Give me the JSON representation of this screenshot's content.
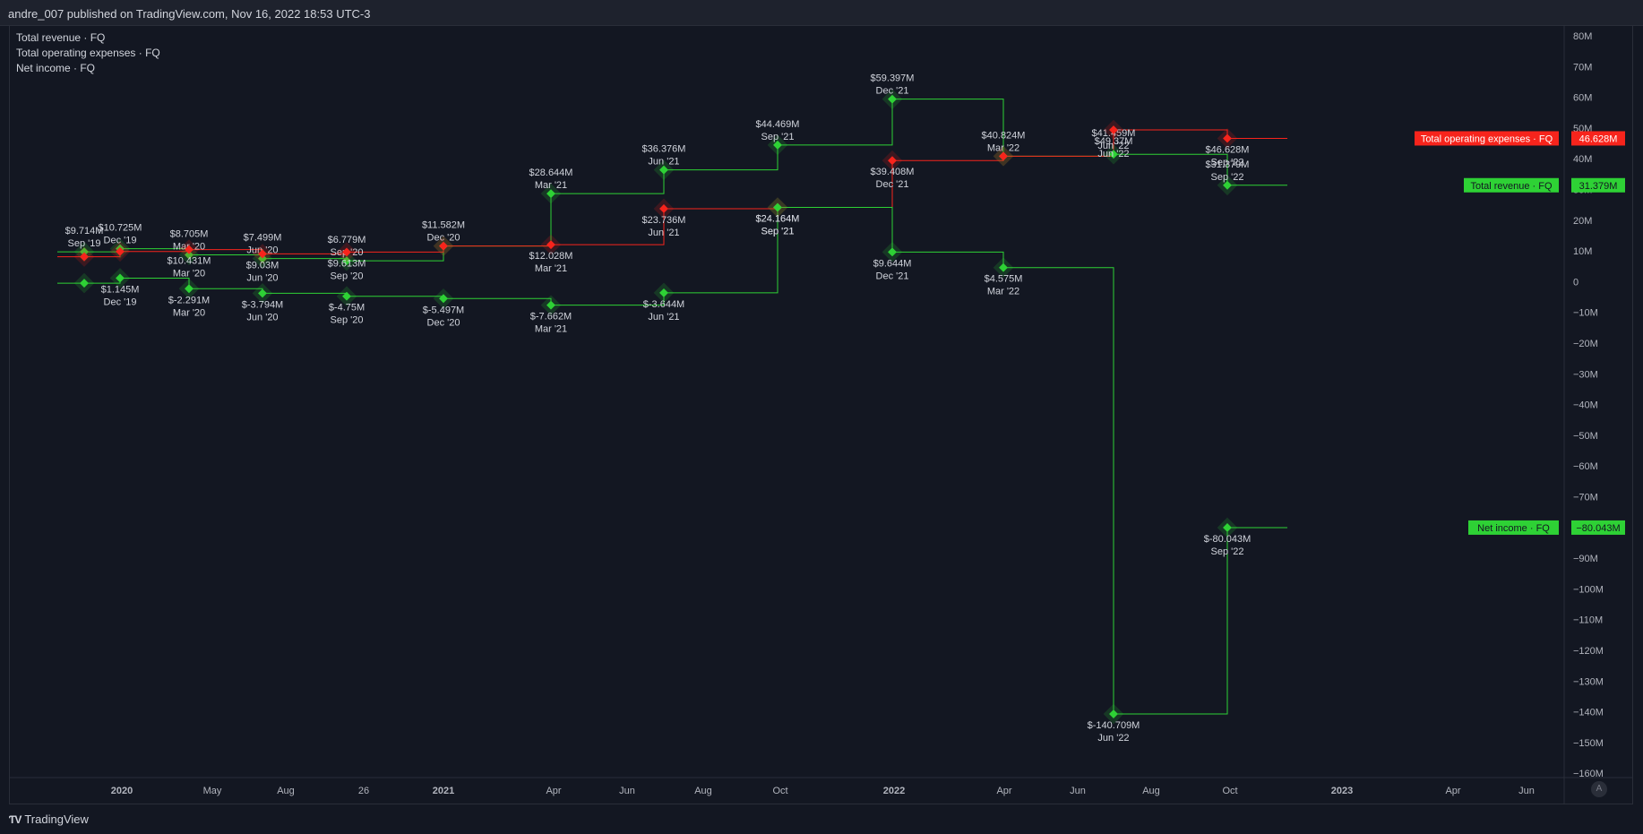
{
  "header": {
    "title": "andre_007 published on TradingView.com, Nov 16, 2022 18:53 UTC-3"
  },
  "legend": {
    "items": [
      "Total revenue · FQ",
      "Total operating expenses · FQ",
      "Net income · FQ"
    ]
  },
  "brand": {
    "label": "TradingView"
  },
  "auto_button": "A",
  "colors": {
    "background": "#131722",
    "revenue": "#2ed135",
    "opex": "#f7241c",
    "net_income": "#2ed135",
    "axis_text": "#b2b5be"
  },
  "chart_data": {
    "type": "line",
    "title": "",
    "x_axis": {
      "ticks": [
        "2020",
        "May",
        "Aug",
        "26",
        "2021",
        "Apr",
        "Jun",
        "Aug",
        "Oct",
        "2022",
        "Apr",
        "Jun",
        "Aug",
        "Oct",
        "2023",
        "Apr",
        "Jun"
      ]
    },
    "y_axis": {
      "unit": "M",
      "range": [
        -160,
        80
      ],
      "ticks": [
        "80M",
        "70M",
        "60M",
        "50M",
        "40M",
        "30M",
        "20M",
        "10M",
        "0",
        "−10M",
        "−20M",
        "−30M",
        "−40M",
        "−50M",
        "−60M",
        "−70M",
        "−80M",
        "−90M",
        "−100M",
        "−110M",
        "−120M",
        "−130M",
        "−140M",
        "−150M",
        "−160M"
      ]
    },
    "categories": [
      "Sep '19",
      "Dec '19",
      "Mar '20",
      "Jun '20",
      "Sep '20",
      "Dec '20",
      "Mar '21",
      "Jun '21",
      "Sep '21",
      "Dec '21",
      "Mar '22",
      "Jun '22",
      "Sep '22"
    ],
    "series": [
      {
        "name": "Total revenue · FQ",
        "values": [
          9.714,
          10.725,
          8.705,
          7.499,
          6.779,
          11.582,
          28.644,
          36.376,
          44.469,
          59.397,
          40.824,
          41.459,
          31.379
        ],
        "labels": [
          "$9.714M",
          "$10.725M",
          "$8.705M",
          "$7.499M",
          "$6.779M",
          "$11.582M",
          "$28.644M",
          "$36.376M",
          "$44.469M",
          "$59.397M",
          "$40.824M",
          "$41.459M",
          "$31.379M"
        ],
        "last_label": "31.379M"
      },
      {
        "name": "Total operating expenses · FQ",
        "values": [
          8.1,
          9.8,
          10.431,
          9.03,
          9.613,
          11.582,
          12.028,
          23.736,
          24.164,
          39.408,
          40.824,
          49.37,
          46.628
        ],
        "labels": [
          "",
          "",
          "$10.431M",
          "$9.03M",
          "$9.613M",
          "",
          "$12.028M",
          "$23.736M",
          "$24.164M",
          "$39.408M",
          "",
          "$49.37M",
          "$46.628M"
        ],
        "last_label": "46.628M"
      },
      {
        "name": "Net income · FQ",
        "values": [
          -0.5,
          1.145,
          -2.291,
          -3.794,
          -4.75,
          -5.497,
          -7.662,
          -3.644,
          24.164,
          9.644,
          4.575,
          -140.709,
          -80.043
        ],
        "labels": [
          "",
          "$1.145M",
          "$-2.291M",
          "$-3.794M",
          "$-4.75M",
          "$-5.497M",
          "$-7.662M",
          "$-3.644M",
          "$24.164M",
          "$9.644M",
          "$4.575M",
          "$-140.709M",
          "$-80.043M"
        ],
        "last_label": "−80.043M"
      }
    ]
  }
}
